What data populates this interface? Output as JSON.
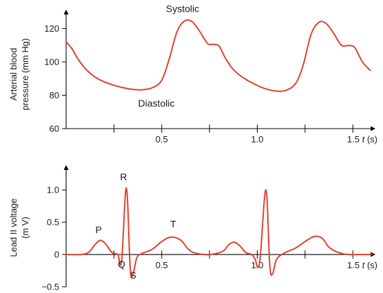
{
  "chart_data": [
    {
      "type": "line",
      "ylabel_lines": [
        "Arterial blood",
        "pressure (mm Hg)"
      ],
      "xlabel_pre": "1.5 ",
      "xlabel_var": "t",
      "xlabel_unit": " (s)",
      "xlim": [
        0,
        1.6
      ],
      "ylim": [
        60,
        128
      ],
      "x_ticks": [
        0.25,
        0.5,
        0.75,
        1.0,
        1.25,
        1.5
      ],
      "x_tick_labels": [
        "0.5",
        "1.0"
      ],
      "x_tick_label_values": [
        0.5,
        1.0
      ],
      "y_ticks": [
        60,
        80,
        100,
        120
      ],
      "y_tick_labels": [
        "60",
        "80",
        "100",
        "120"
      ],
      "annotations": [
        {
          "text": "Systolic",
          "x": 0.62,
          "y": 125
        },
        {
          "text": "Diastolic",
          "x": 0.4,
          "y": 83
        }
      ],
      "series": [
        {
          "color": "#e0402b",
          "x": [
            0.0,
            0.03,
            0.06,
            0.1,
            0.15,
            0.2,
            0.25,
            0.3,
            0.35,
            0.4,
            0.45,
            0.5,
            0.54,
            0.58,
            0.62,
            0.66,
            0.7,
            0.74,
            0.77,
            0.8,
            0.83,
            0.87,
            0.92,
            0.98,
            1.04,
            1.1,
            1.15,
            1.2,
            1.24,
            1.28,
            1.32,
            1.36,
            1.4,
            1.44,
            1.48,
            1.51,
            1.55,
            1.59
          ],
          "y": [
            112,
            108,
            102,
            96,
            91,
            88,
            86,
            84.5,
            83.5,
            83.3,
            84.5,
            89,
            102,
            118,
            124.5,
            124,
            118,
            111,
            110.5,
            109.5,
            103,
            96,
            91,
            87,
            84,
            82.5,
            83,
            87,
            98,
            116,
            123.5,
            123,
            117,
            110,
            109.8,
            108.5,
            100,
            95
          ]
        }
      ]
    },
    {
      "type": "line",
      "ylabel_lines": [
        "Lead II voltage",
        "(m V)"
      ],
      "xlabel_pre": "1.5 ",
      "xlabel_var": "t",
      "xlabel_unit": " (s)",
      "xlim": [
        0,
        1.6
      ],
      "ylim": [
        -0.5,
        1.15
      ],
      "x_ticks": [
        0.25,
        0.5,
        0.75,
        1.0,
        1.25,
        1.5
      ],
      "x_tick_labels": [
        "0.5",
        "1.0"
      ],
      "x_tick_label_values": [
        0.5,
        1.0
      ],
      "y_ticks": [
        -0.5,
        0,
        0.5,
        1.0
      ],
      "y_tick_labels": [
        "−0.5",
        "0",
        "0.5",
        "1.0"
      ],
      "annotations": [
        {
          "text": "P",
          "x": 0.17,
          "y": 0.33
        },
        {
          "text": "R",
          "x": 0.3,
          "y": 1.15
        },
        {
          "text": "Q",
          "x": 0.29,
          "y": -0.2
        },
        {
          "text": "S",
          "x": 0.35,
          "y": -0.37
        },
        {
          "text": "T",
          "x": 0.56,
          "y": 0.42
        }
      ],
      "series": [
        {
          "color": "#e0402b",
          "x": [
            0.0,
            0.08,
            0.12,
            0.15,
            0.18,
            0.21,
            0.24,
            0.27,
            0.29,
            0.315,
            0.335,
            0.35,
            0.37,
            0.4,
            0.45,
            0.5,
            0.55,
            0.6,
            0.64,
            0.68,
            0.75,
            0.82,
            0.85,
            0.88,
            0.91,
            0.94,
            0.97,
            0.99,
            1.0,
            1.015,
            1.045,
            1.065,
            1.08,
            1.1,
            1.14,
            1.2,
            1.26,
            1.3,
            1.34,
            1.38,
            1.45,
            1.55,
            1.6
          ],
          "y": [
            0.0,
            0.0,
            0.04,
            0.15,
            0.22,
            0.15,
            0.03,
            0.0,
            -0.1,
            1.03,
            -0.2,
            -0.3,
            -0.05,
            0.02,
            0.08,
            0.2,
            0.27,
            0.22,
            0.08,
            0.02,
            0.0,
            0.05,
            0.15,
            0.19,
            0.13,
            0.03,
            0.0,
            -0.08,
            -0.18,
            -0.05,
            1.0,
            -0.15,
            -0.3,
            -0.08,
            0.02,
            0.1,
            0.22,
            0.28,
            0.25,
            0.1,
            0.01,
            0.0,
            0.0
          ]
        }
      ]
    }
  ]
}
